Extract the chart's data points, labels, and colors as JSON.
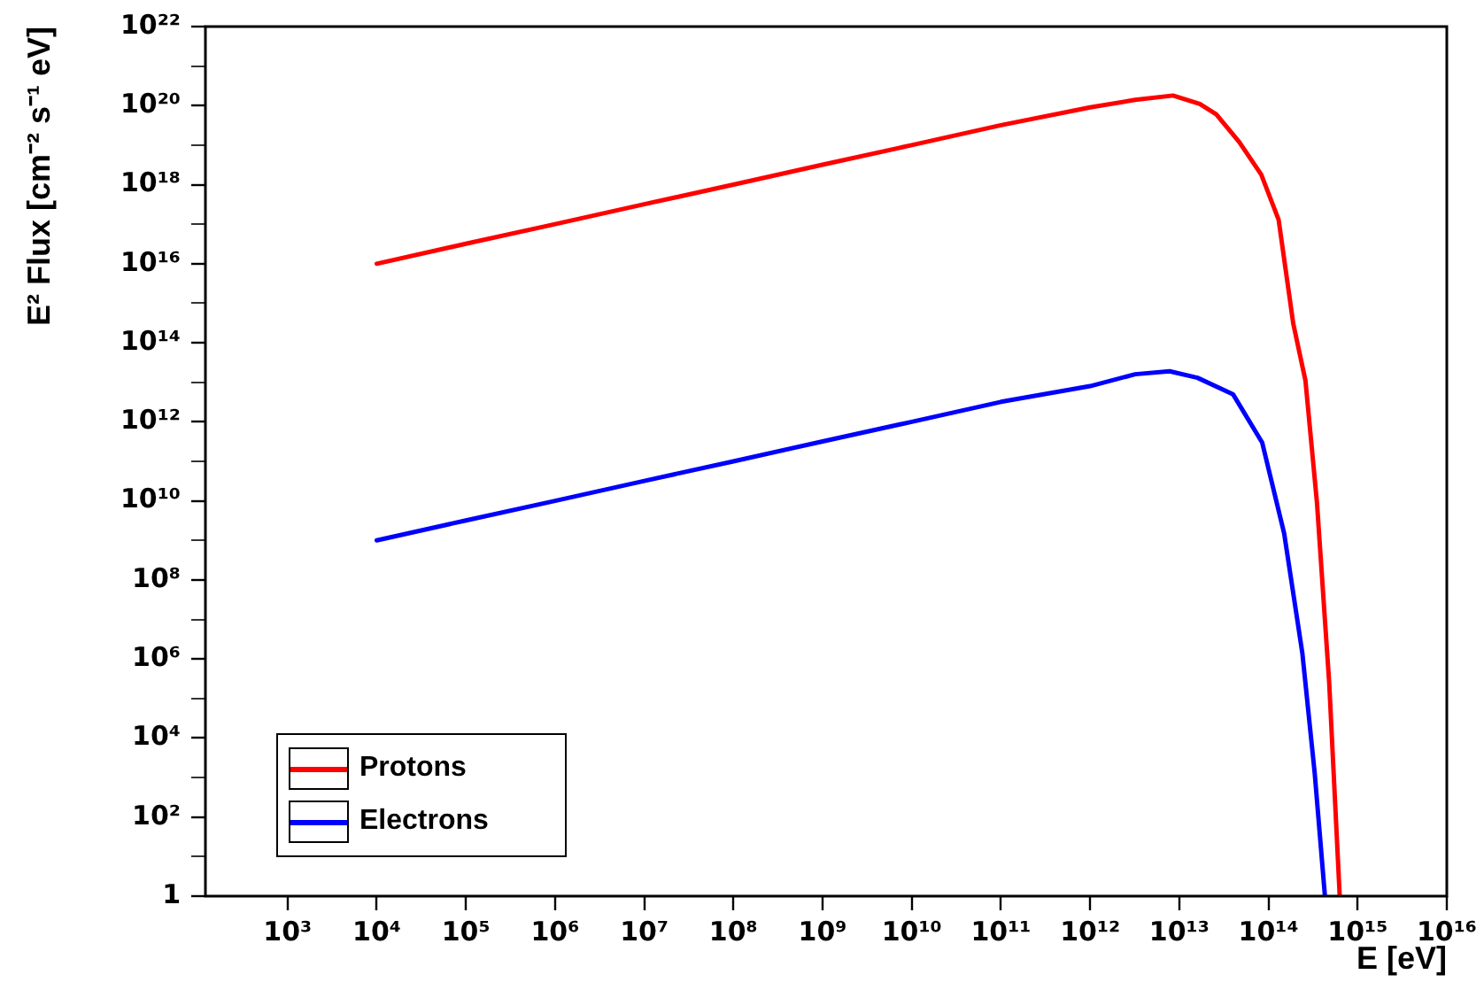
{
  "chart_data": {
    "type": "line",
    "xlabel": "E [eV]",
    "ylabel": "E² Flux [cm⁻² s⁻¹ eV]",
    "log": "xy",
    "grid": false,
    "legend": "bottom left",
    "marker": "none",
    "line_style": "solid",
    "xlim": [
      120,
      1e+16
    ],
    "xticks": [
      {
        "value": 1000.0,
        "label": "10³"
      },
      {
        "value": 10000.0,
        "label": "10⁴"
      },
      {
        "value": 100000.0,
        "label": "10⁵"
      },
      {
        "value": 1000000.0,
        "label": "10⁶"
      },
      {
        "value": 10000000.0,
        "label": "10⁷"
      },
      {
        "value": 100000000.0,
        "label": "10⁸"
      },
      {
        "value": 1000000000.0,
        "label": "10⁹"
      },
      {
        "value": 10000000000.0,
        "label": "10¹⁰"
      },
      {
        "value": 100000000000.0,
        "label": "10¹¹"
      },
      {
        "value": 1000000000000.0,
        "label": "10¹²"
      },
      {
        "value": 10000000000000.0,
        "label": "10¹³"
      },
      {
        "value": 100000000000000.0,
        "label": "10¹⁴"
      },
      {
        "value": 1000000000000000.0,
        "label": "10¹⁵"
      },
      {
        "value": 1e+16,
        "label": "10¹⁶"
      }
    ],
    "ylim": [
      1,
      1e+22
    ],
    "yticks": [
      1,
      {
        "value": 10,
        "label": null
      },
      {
        "value": 100.0,
        "label": "10²"
      },
      {
        "value": 1000.0,
        "label": null
      },
      {
        "value": 10000.0,
        "label": "10⁴"
      },
      {
        "value": 100000.0,
        "label": null
      },
      {
        "value": 1000000.0,
        "label": "10⁶"
      },
      {
        "value": 10000000.0,
        "label": null
      },
      {
        "value": 100000000.0,
        "label": "10⁸"
      },
      {
        "value": 1000000000.0,
        "label": null
      },
      {
        "value": 10000000000.0,
        "label": "10¹⁰"
      },
      {
        "value": 100000000000.0,
        "label": null
      },
      {
        "value": 1000000000000.0,
        "label": "10¹²"
      },
      {
        "value": 10000000000000.0,
        "label": null
      },
      {
        "value": 100000000000000.0,
        "label": "10¹⁴"
      },
      {
        "value": 1000000000000000.0,
        "label": null
      },
      {
        "value": 1e+16,
        "label": "10¹⁶"
      },
      {
        "value": 1e+17,
        "label": null
      },
      {
        "value": 1e+18,
        "label": "10¹⁸"
      },
      {
        "value": 1e+19,
        "label": null
      },
      {
        "value": 1e+20,
        "label": "10²⁰"
      },
      {
        "value": 1e+21,
        "label": null
      },
      {
        "value": 1e+22,
        "label": "10²²"
      }
    ],
    "series": [
      {
        "name": "Protons",
        "color": "#ff0000",
        "x": [
          10000.0,
          100000.0,
          1000000.0,
          10000000.0,
          100000000.0,
          1000000000.0,
          10000000000.0,
          100000000000.0,
          1000000000000.0,
          3200000000000.0,
          8500000000000.0,
          17000000000000.0,
          26000000000000.0,
          47000000000000.0,
          83000000000000.0,
          130000000000000.0,
          190000000000000.0,
          260000000000000.0,
          350000000000000.0,
          480000000000000.0,
          630000000000000.0
        ],
        "values": [
          1e+16,
          3.2e+16,
          1e+17,
          3.2e+17,
          1e+18,
          3.2e+18,
          1e+19,
          3.2e+19,
          9e+19,
          1.4e+20,
          1.8e+20,
          1.1e+20,
          6e+19,
          1.2e+19,
          1.8e+18,
          1.3e+17,
          300000000000000.0,
          11000000000000.0,
          9000000000.0,
          250000.0,
          1
        ]
      },
      {
        "name": "Electrons",
        "color": "#0000ff",
        "x": [
          10000.0,
          100000.0,
          1000000.0,
          10000000.0,
          100000000.0,
          1000000000.0,
          10000000000.0,
          100000000000.0,
          1000000000000.0,
          3200000000000.0,
          7800000000000.0,
          16000000000000.0,
          40000000000000.0,
          85000000000000.0,
          150000000000000.0,
          240000000000000.0,
          330000000000000.0,
          430000000000000.0
        ],
        "values": [
          1000000000.0,
          3200000000.0,
          10000000000.0,
          32000000000.0,
          100000000000.0,
          320000000000.0,
          1000000000000.0,
          3200000000000.0,
          8000000000000.0,
          16000000000000.0,
          19000000000000.0,
          13000000000000.0,
          5000000000000.0,
          300000000000.0,
          1500000000.0,
          1400000.0,
          1300.0,
          1
        ]
      }
    ]
  }
}
